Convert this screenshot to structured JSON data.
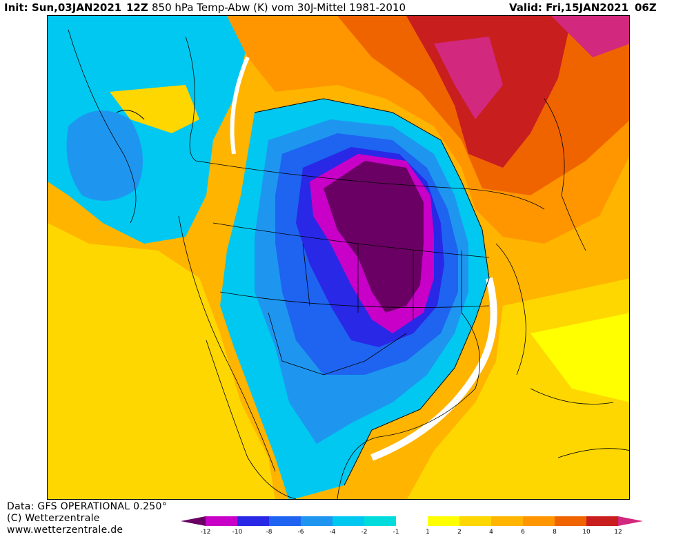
{
  "header": {
    "init_label": "Init:",
    "init_date": "Sun,03JAN2021",
    "run": "12Z",
    "parameter": "850 hPa Temp-Abw (K) vom 30J-Mittel 1981-2010",
    "valid": "Valid: Fri,15JAN2021",
    "valid_time": "06Z"
  },
  "footer": {
    "data_source": "Data: GFS OPERATIONAL 0.250°",
    "copyright": "(C) Wetterzentrale",
    "website": "www.wetterzentrale.de"
  },
  "legend": {
    "colors": [
      "#6a0064",
      "#c800c8",
      "#2828e6",
      "#1e64f0",
      "#1e96f0",
      "#00c8f0",
      "#00dcdc",
      "#ffffff",
      "#ffff00",
      "#ffd700",
      "#ffb400",
      "#ff9600",
      "#f06400",
      "#c81e1e",
      "#d2287d"
    ],
    "ticks": [
      "-12",
      "-10",
      "-8",
      "-6",
      "-4",
      "-2",
      "-1",
      "1",
      "2",
      "4",
      "6",
      "8",
      "10",
      "12"
    ]
  },
  "map_colors": {
    "neutral": "#ffffff",
    "warm_yellow": "#ffff00",
    "warm_gold": "#ffd700",
    "warm_orange": "#ffb400",
    "warm_dark_orange": "#ff9600",
    "warm_red_orange": "#f06400",
    "warm_red": "#c81e1e",
    "warm_magenta": "#d2287d",
    "cold_cyan": "#00c8f0",
    "cold_light_blue": "#1e96f0",
    "cold_blue": "#1e64f0",
    "cold_deep_blue": "#2828e6",
    "cold_magenta": "#c800c8",
    "cold_purple": "#6a0064"
  }
}
